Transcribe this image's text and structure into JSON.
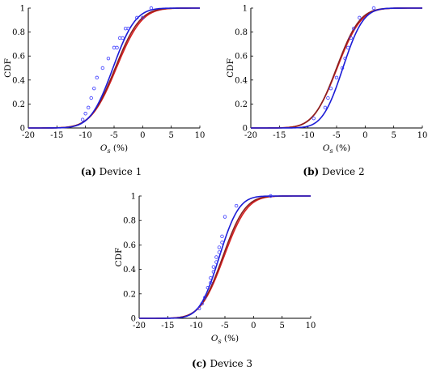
{
  "colors": {
    "blue_curve": "#1c1cd6",
    "brown_curve": "#8a1f1f",
    "red_curve": "#d62020",
    "markers": "#3a3aff",
    "axis": "#000000"
  },
  "chart_data": [
    {
      "type": "line",
      "caption_letter": "(a)",
      "caption_text": "Device 1",
      "xlabel": "O_s (%)",
      "ylabel": "CDF",
      "xlim": [
        -20,
        10
      ],
      "ylim": [
        0,
        1
      ],
      "xticks": [
        -20,
        -15,
        -10,
        -5,
        0,
        5,
        10
      ],
      "yticks": [
        0,
        0.2,
        0.4,
        0.6,
        0.8,
        1
      ],
      "grid": false,
      "series": [
        {
          "kind": "empirical",
          "color": "#3a3aff",
          "x": [
            -10.5,
            -10,
            -9.5,
            -9,
            -8.5,
            -8,
            -7,
            -6,
            -5,
            -4.5,
            -4,
            -3.5,
            -3,
            -2.5,
            -1,
            0,
            1.5
          ],
          "y": [
            0.07,
            0.12,
            0.17,
            0.25,
            0.33,
            0.42,
            0.5,
            0.58,
            0.67,
            0.67,
            0.75,
            0.75,
            0.83,
            0.83,
            0.92,
            0.92,
            1.0
          ]
        },
        {
          "kind": "fit",
          "color": "#1c1cd6",
          "mu": -5.2,
          "sigma": 3.1
        },
        {
          "kind": "fit",
          "color": "#8a1f1f",
          "mu": -4.8,
          "sigma": 3.4
        },
        {
          "kind": "fit",
          "color": "#d62020",
          "mu": -4.6,
          "sigma": 3.5
        }
      ]
    },
    {
      "type": "line",
      "caption_letter": "(b)",
      "caption_text": "Device 2",
      "xlabel": "O_s (%)",
      "ylabel": "CDF",
      "xlim": [
        -20,
        10
      ],
      "ylim": [
        0,
        1
      ],
      "xticks": [
        -20,
        -15,
        -10,
        -5,
        0,
        5,
        10
      ],
      "yticks": [
        0,
        0.2,
        0.4,
        0.6,
        0.8,
        1
      ],
      "grid": false,
      "series": [
        {
          "kind": "empirical",
          "color": "#3a3aff",
          "x": [
            -9,
            -7,
            -6.5,
            -6,
            -5,
            -4,
            -3.5,
            -3,
            -2.5,
            -2,
            -1,
            1.5
          ],
          "y": [
            0.08,
            0.17,
            0.25,
            0.33,
            0.42,
            0.5,
            0.58,
            0.67,
            0.75,
            0.83,
            0.92,
            1.0
          ]
        },
        {
          "kind": "fit",
          "color": "#1c1cd6",
          "mu": -3.9,
          "sigma": 2.8
        },
        {
          "kind": "fit",
          "color": "#8a1f1f",
          "mu": -5.0,
          "sigma": 3.2
        },
        {
          "kind": "fit",
          "color": "#d62020",
          "mu": -4.9,
          "sigma": 3.3
        }
      ]
    },
    {
      "type": "line",
      "caption_letter": "(c)",
      "caption_text": "Device 3",
      "xlabel": "O_s (%)",
      "ylabel": "CDF",
      "xlim": [
        -20,
        10
      ],
      "ylim": [
        0,
        1
      ],
      "xticks": [
        -20,
        -15,
        -10,
        -5,
        0,
        5,
        10
      ],
      "yticks": [
        0,
        0.2,
        0.4,
        0.6,
        0.8,
        1
      ],
      "grid": false,
      "series": [
        {
          "kind": "empirical",
          "color": "#3a3aff",
          "x": [
            -9.5,
            -9,
            -8.5,
            -8,
            -7.5,
            -7.5,
            -7,
            -7,
            -6.5,
            -6.5,
            -6,
            -6,
            -5.5,
            -5.5,
            -5,
            -3,
            3
          ],
          "y": [
            0.08,
            0.12,
            0.17,
            0.25,
            0.29,
            0.33,
            0.38,
            0.42,
            0.46,
            0.5,
            0.54,
            0.58,
            0.62,
            0.67,
            0.83,
            0.92,
            1.0
          ]
        },
        {
          "kind": "fit",
          "color": "#1c1cd6",
          "mu": -6.0,
          "sigma": 2.7
        },
        {
          "kind": "fit",
          "color": "#8a1f1f",
          "mu": -5.4,
          "sigma": 3.1
        },
        {
          "kind": "fit",
          "color": "#d62020",
          "mu": -5.2,
          "sigma": 3.2
        }
      ]
    }
  ]
}
